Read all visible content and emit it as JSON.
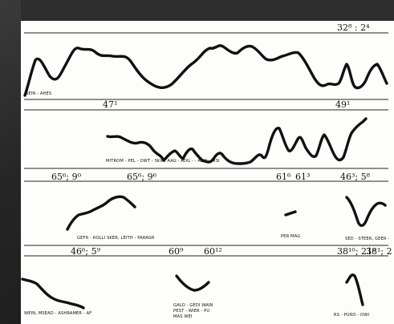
{
  "figure": {
    "top_right_number": "32⁸ : 2⁴",
    "row1": {
      "label": "SEIN - AHES",
      "number_left": "47¹",
      "number_right": "49¹"
    },
    "row2": {
      "label": "MITROM - PEL - OWT - SKIR, AAG - ADG -  - ASKI - MSI",
      "numbers": [
        "65⁶; 9⁰",
        "65⁶; 9⁶",
        "61⁶",
        "61³",
        "46³; 5⁸"
      ]
    },
    "row3": {
      "label_left": "GEFR - ROLLI SKER, LEITH - PARAGR",
      "label_mid": "PER MAG",
      "label_right": "SED - STEER, GEER -"
    },
    "row4": {
      "numbers": [
        "46⁶; 5⁹",
        "60⁹",
        "60¹²",
        "38¹⁰; 21⁶",
        "38¹; 2"
      ],
      "label_left": "WEIN, MSEAD - ASHRAMER - AF",
      "label_mid_lines": [
        "GALO - GEDI WAIN",
        "PEST - WIER - PU",
        "MAS WEI"
      ],
      "label_right": "RS - PURO - OWI"
    }
  }
}
